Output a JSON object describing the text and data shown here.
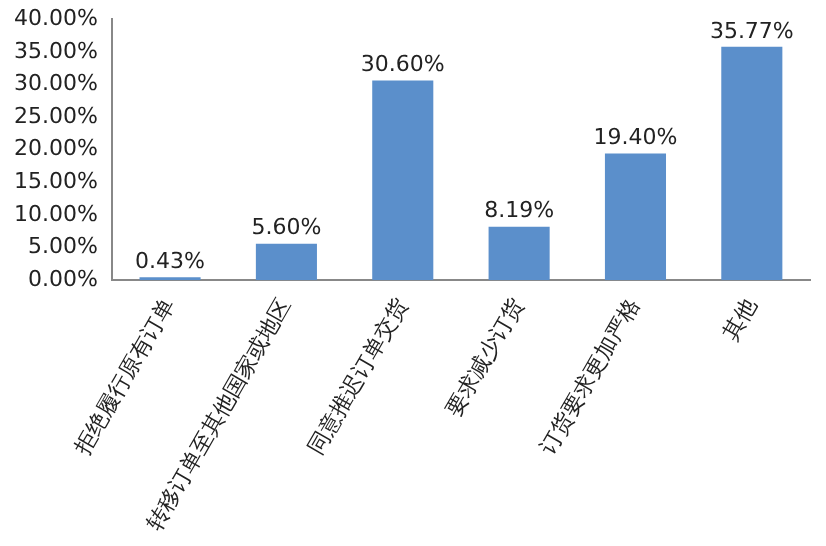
{
  "chart_data": {
    "type": "bar",
    "categories": [
      "拒绝履行原有订单",
      "转移订单至其他国家或地区",
      "同意推迟订单交货",
      "要求减少订货",
      "订货要求更加严格",
      "其他"
    ],
    "values": [
      0.43,
      5.6,
      30.6,
      8.19,
      19.4,
      35.77
    ],
    "value_labels": [
      "0.43%",
      "5.60%",
      "30.60%",
      "8.19%",
      "19.40%",
      "35.77%"
    ],
    "color": "#5b8fcb",
    "ylim": [
      0,
      40
    ],
    "yticks": [
      {
        "value": 0,
        "label": "0.00%"
      },
      {
        "value": 5,
        "label": "5.00%"
      },
      {
        "value": 10,
        "label": "10.00%"
      },
      {
        "value": 15,
        "label": "15.00%"
      },
      {
        "value": 20,
        "label": "20.00%"
      },
      {
        "value": 25,
        "label": "25.00%"
      },
      {
        "value": 30,
        "label": "30.00%"
      },
      {
        "value": 35,
        "label": "35.00%"
      },
      {
        "value": 40,
        "label": "40.00%"
      }
    ],
    "grid": false,
    "legend": false
  }
}
